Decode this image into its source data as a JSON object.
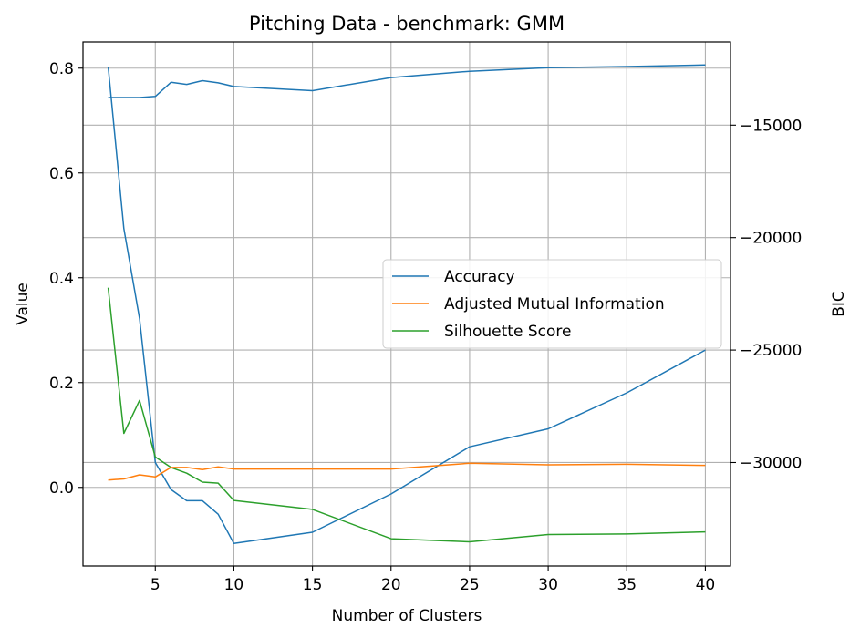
{
  "chart_data": {
    "type": "line",
    "title": "Pitching Data - benchmark: GMM",
    "xlabel": "Number of Clusters",
    "ylabel": "Value",
    "ylabel_right": "BIC",
    "xlim": [
      0.4,
      41.6
    ],
    "ylim": [
      -0.15,
      0.85
    ],
    "ylim_right": [
      -34600,
      -11300
    ],
    "xticks": [
      5,
      10,
      15,
      20,
      25,
      30,
      35,
      40
    ],
    "yticks": [
      0.0,
      0.2,
      0.4,
      0.6,
      0.8
    ],
    "yticks_right": [
      -30000,
      -25000,
      -20000,
      -15000
    ],
    "xtick_labels": [
      "5",
      "10",
      "15",
      "20",
      "25",
      "30",
      "35",
      "40"
    ],
    "ytick_labels": [
      "0.0",
      "0.2",
      "0.4",
      "0.6",
      "0.8"
    ],
    "ytick_right_labels": [
      "−30000",
      "−25000",
      "−20000",
      "−15000"
    ],
    "grid": true,
    "legend_position": "center-right",
    "x": [
      2,
      3,
      4,
      5,
      6,
      7,
      8,
      9,
      10,
      15,
      20,
      25,
      30,
      35,
      40
    ],
    "series": [
      {
        "name": "Accuracy",
        "axis": "left",
        "color": "#1f77b4",
        "values": [
          0.744,
          0.744,
          0.744,
          0.746,
          0.773,
          0.769,
          0.776,
          0.772,
          0.765,
          0.757,
          0.782,
          0.794,
          0.801,
          0.803,
          0.806
        ]
      },
      {
        "name": "Adjusted Mutual Information",
        "axis": "left",
        "color": "#ff7f0e",
        "values": [
          0.014,
          0.016,
          0.024,
          0.02,
          0.038,
          0.038,
          0.034,
          0.039,
          0.035,
          0.035,
          0.035,
          0.046,
          0.043,
          0.044,
          0.042
        ]
      },
      {
        "name": "Silhouette Score",
        "axis": "left",
        "color": "#2ca02c",
        "values": [
          0.381,
          0.103,
          0.166,
          0.058,
          0.038,
          0.027,
          0.01,
          0.008,
          -0.025,
          -0.042,
          -0.098,
          -0.104,
          -0.09,
          -0.089,
          -0.085
        ]
      }
    ],
    "series_right": [
      {
        "name": "",
        "axis": "right",
        "color": "#1f77b4",
        "values": [
          -12400,
          -19600,
          -23600,
          -30000,
          -31200,
          -31700,
          -31700,
          -32300,
          -33600,
          -33100,
          -31400,
          -29300,
          -28500,
          -26900,
          -25000
        ]
      }
    ]
  }
}
